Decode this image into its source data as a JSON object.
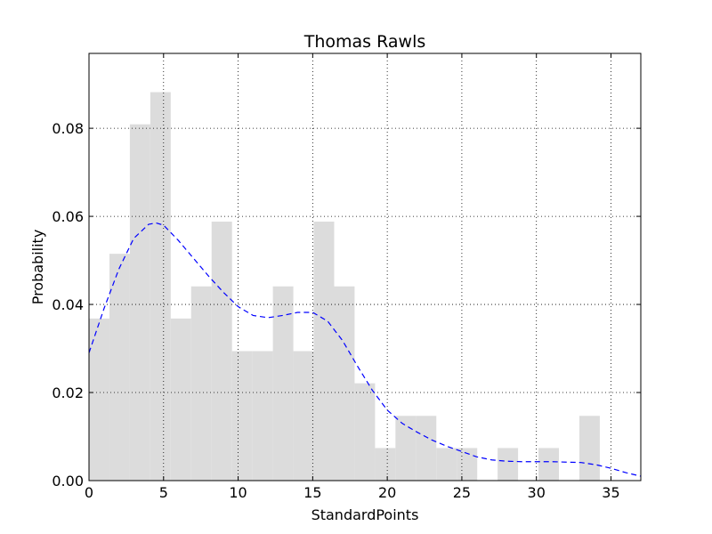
{
  "chart_data": {
    "type": "bar",
    "title": "Thomas Rawls",
    "xlabel": "StandardPoints",
    "ylabel": "Probability",
    "xlim": [
      0,
      37
    ],
    "ylim": [
      0,
      0.097
    ],
    "xticks": [
      0,
      5,
      10,
      15,
      20,
      25,
      30,
      35
    ],
    "xtick_labels": [
      "0",
      "5",
      "10",
      "15",
      "20",
      "25",
      "30",
      "35"
    ],
    "yticks": [
      0.0,
      0.02,
      0.04,
      0.06,
      0.08
    ],
    "ytick_labels": [
      "0.00",
      "0.02",
      "0.04",
      "0.06",
      "0.08"
    ],
    "grid": true,
    "grid_style": "dotted",
    "bar_color": "#dcdcdc",
    "line_color": "#0000ff",
    "histogram": {
      "bin_start": 0,
      "bin_width": 1.37,
      "values": [
        0.0368,
        0.0515,
        0.0809,
        0.0882,
        0.0368,
        0.0441,
        0.0588,
        0.0294,
        0.0294,
        0.0441,
        0.0294,
        0.0588,
        0.0441,
        0.0221,
        0.0074,
        0.0147,
        0.0147,
        0.0074,
        0.0074,
        0.0,
        0.0074,
        0.0,
        0.0074,
        0.0,
        0.0147,
        0.0,
        0.0
      ]
    },
    "series": [
      {
        "type": "line",
        "style": "dashed",
        "x": [
          0,
          1,
          2,
          3,
          4,
          4.5,
          5,
          6,
          7,
          8,
          9,
          10,
          11,
          12,
          13,
          14,
          15,
          16,
          17,
          18,
          19,
          20,
          21,
          22,
          23,
          24,
          25,
          26,
          27,
          28,
          29,
          30,
          31,
          32,
          33,
          34,
          35,
          36,
          37
        ],
        "y": [
          0.029,
          0.039,
          0.048,
          0.055,
          0.0582,
          0.0585,
          0.058,
          0.0545,
          0.0505,
          0.0465,
          0.0428,
          0.0395,
          0.0375,
          0.037,
          0.0375,
          0.0382,
          0.0382,
          0.0362,
          0.0318,
          0.026,
          0.0205,
          0.016,
          0.013,
          0.011,
          0.0092,
          0.0078,
          0.0066,
          0.0054,
          0.0047,
          0.0044,
          0.0043,
          0.0043,
          0.0043,
          0.0042,
          0.0041,
          0.0036,
          0.0028,
          0.0018,
          0.001
        ]
      }
    ]
  }
}
